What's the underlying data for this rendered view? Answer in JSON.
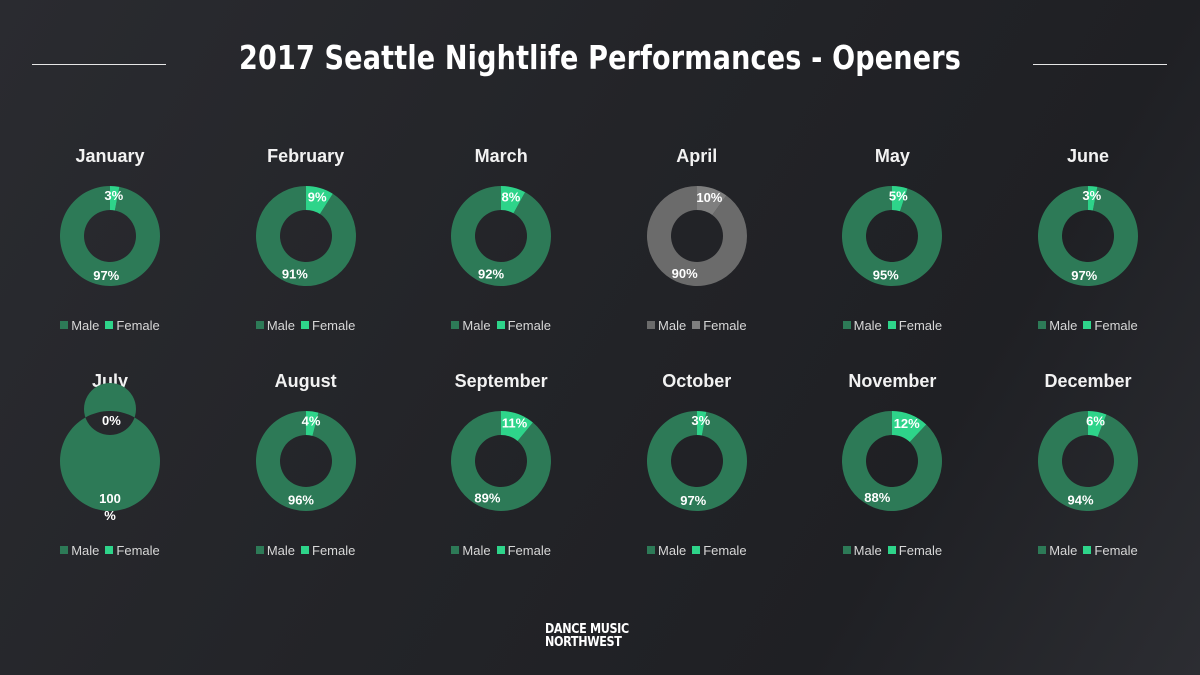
{
  "header": {
    "title": "2017 Seattle Nightlife Performances - Openers"
  },
  "colors": {
    "male": "#2d7a57",
    "female": "#2ed48a",
    "male_gray": "#6b6b6b",
    "female_gray": "#7f7f7f"
  },
  "legend": {
    "male_label": "Male",
    "female_label": "Female"
  },
  "logo": {
    "line1": "DANCE MUSIC",
    "line2": "NORTHWEST"
  },
  "chart_data": [
    {
      "type": "pie",
      "title": "January",
      "male": 97,
      "female": 3,
      "male_label": "97%",
      "female_label": "3%"
    },
    {
      "type": "pie",
      "title": "February",
      "male": 91,
      "female": 9,
      "male_label": "91%",
      "female_label": "9%"
    },
    {
      "type": "pie",
      "title": "March",
      "male": 92,
      "female": 8,
      "male_label": "92%",
      "female_label": "8%"
    },
    {
      "type": "pie",
      "title": "April",
      "male": 90,
      "female": 10,
      "male_label": "90%",
      "female_label": "10%",
      "grayscale": true
    },
    {
      "type": "pie",
      "title": "May",
      "male": 95,
      "female": 5,
      "male_label": "95%",
      "female_label": "5%"
    },
    {
      "type": "pie",
      "title": "June",
      "male": 97,
      "female": 3,
      "male_label": "97%",
      "female_label": "3%"
    },
    {
      "type": "pie",
      "title": "July",
      "male": 100,
      "female": 0,
      "male_label": "100 %",
      "female_label": "0%"
    },
    {
      "type": "pie",
      "title": "August",
      "male": 96,
      "female": 4,
      "male_label": "96%",
      "female_label": "4%"
    },
    {
      "type": "pie",
      "title": "September",
      "male": 89,
      "female": 11,
      "male_label": "89%",
      "female_label": "11%"
    },
    {
      "type": "pie",
      "title": "October",
      "male": 97,
      "female": 3,
      "male_label": "97%",
      "female_label": "3%"
    },
    {
      "type": "pie",
      "title": "November",
      "male": 88,
      "female": 12,
      "male_label": "88%",
      "female_label": "12%"
    },
    {
      "type": "pie",
      "title": "December",
      "male": 94,
      "female": 6,
      "male_label": "94%",
      "female_label": "6%"
    }
  ]
}
